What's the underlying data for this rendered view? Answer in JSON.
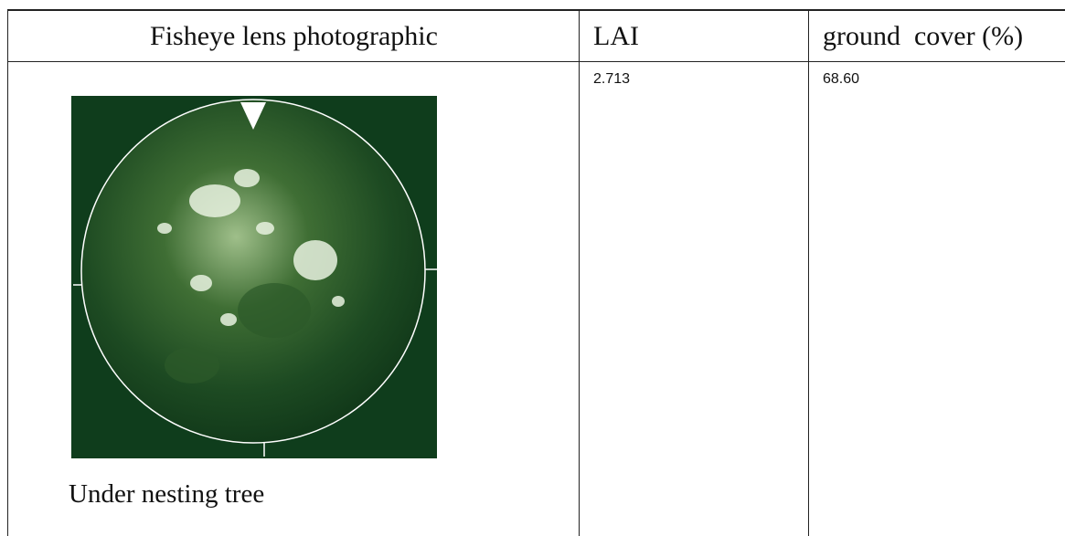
{
  "table": {
    "header": [
      "Fisheye lens photographic",
      "LAI",
      "ground  cover (%)"
    ],
    "rows": [
      [
        "Under nesting tree",
        "2.713",
        "68.60"
      ]
    ]
  }
}
